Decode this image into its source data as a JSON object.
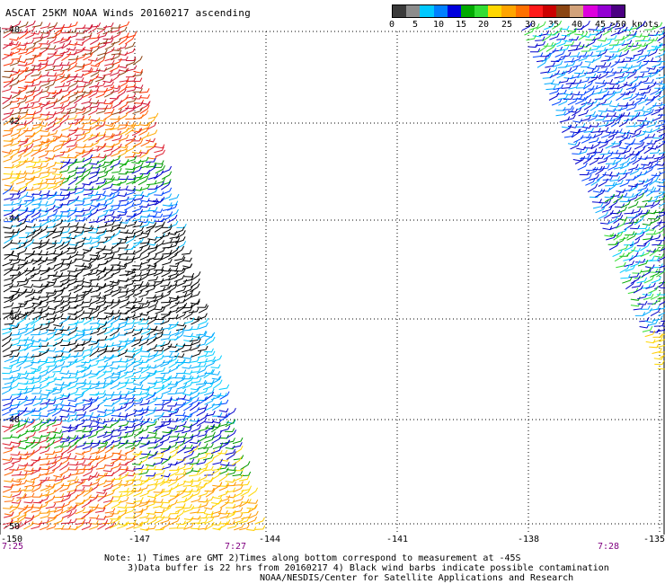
{
  "title": "ASCAT 25KM NOAA Winds 20160217 ascending",
  "legend": {
    "colors": [
      "#3a3a3a",
      "#8c8c8c",
      "#00c8ff",
      "#0080ff",
      "#0000dd",
      "#00aa00",
      "#33dd33",
      "#ffd700",
      "#ffa500",
      "#ff7000",
      "#ff1a1a",
      "#cc0000",
      "#8b4513",
      "#d2a27a",
      "#dd00dd",
      "#9400d3",
      "#4b0082"
    ],
    "labels": [
      "0",
      "5",
      "10",
      "15",
      "20",
      "25",
      "30",
      "35",
      "40",
      "45",
      ">50 knots"
    ]
  },
  "map": {
    "lat_labels": [
      "-40",
      "-42",
      "-44",
      "-46",
      "-48",
      "-50"
    ],
    "lon_labels": [
      "-150",
      "-147",
      "-144",
      "-141",
      "-138",
      "-135"
    ],
    "time_labels": [
      "7:25",
      "7:27",
      "7:28"
    ]
  },
  "notes": {
    "line1": "Note: 1) Times are GMT 2)Times along bottom correspond to measurement at -45S",
    "line2": "3)Data buffer is 22 hrs from 20160217 4) Black wind barbs indicate possible contamination",
    "line3": "NOAA/NESDIS/Center for Satellite Applications and Research"
  }
}
